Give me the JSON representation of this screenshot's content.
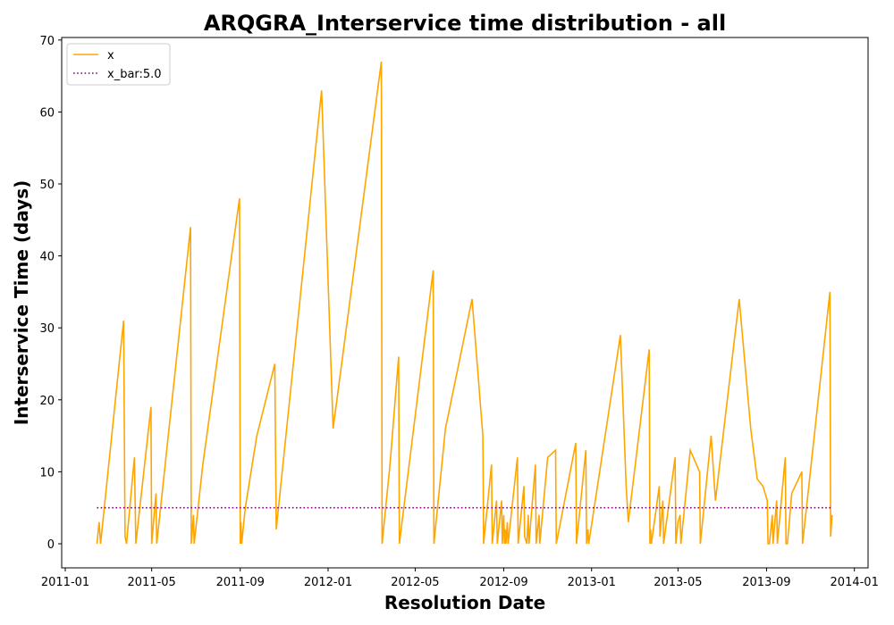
{
  "chart_data": {
    "type": "line",
    "title": "ARQGRA_Interservice time distribution - all",
    "xlabel": "Resolution Date",
    "ylabel": "Interservice Time (days)",
    "x_tick_labels": [
      "2011-01",
      "2011-05",
      "2011-09",
      "2012-01",
      "2012-05",
      "2012-09",
      "2013-01",
      "2013-05",
      "2013-09",
      "2014-01"
    ],
    "y_tick_labels": [
      "0",
      "10",
      "20",
      "30",
      "40",
      "50",
      "60",
      "70"
    ],
    "ylim": [
      -3.35,
      70.35
    ],
    "xlim": [
      "2010-12-27",
      "2014-01-20"
    ],
    "grid": false,
    "legend_position": "top-left",
    "series": [
      {
        "name": "x",
        "color": "#ffa500",
        "style": "solid",
        "points": [
          [
            "2011-02-14",
            0
          ],
          [
            "2011-02-17",
            3
          ],
          [
            "2011-02-19",
            0
          ],
          [
            "2011-03-23",
            31
          ],
          [
            "2011-03-25",
            1
          ],
          [
            "2011-03-27",
            0
          ],
          [
            "2011-04-07",
            12
          ],
          [
            "2011-04-09",
            0
          ],
          [
            "2011-04-30",
            19
          ],
          [
            "2011-05-01",
            0
          ],
          [
            "2011-05-07",
            7
          ],
          [
            "2011-05-08",
            0
          ],
          [
            "2011-06-24",
            44
          ],
          [
            "2011-06-25",
            0
          ],
          [
            "2011-06-28",
            4
          ],
          [
            "2011-06-29",
            0
          ],
          [
            "2011-07-11",
            11
          ],
          [
            "2011-08-31",
            48
          ],
          [
            "2011-09-01",
            0
          ],
          [
            "2011-09-02",
            3
          ],
          [
            "2011-09-03",
            0
          ],
          [
            "2011-09-08",
            5
          ],
          [
            "2011-09-24",
            15
          ],
          [
            "2011-10-19",
            25
          ],
          [
            "2011-10-21",
            2
          ],
          [
            "2011-12-23",
            63
          ],
          [
            "2012-01-08",
            16
          ],
          [
            "2012-03-15",
            67
          ],
          [
            "2012-03-16",
            0
          ],
          [
            "2012-03-27",
            11
          ],
          [
            "2012-04-08",
            26
          ],
          [
            "2012-04-09",
            0
          ],
          [
            "2012-05-26",
            38
          ],
          [
            "2012-05-27",
            0
          ],
          [
            "2012-06-12",
            16
          ],
          [
            "2012-07-19",
            34
          ],
          [
            "2012-08-03",
            15
          ],
          [
            "2012-08-04",
            0
          ],
          [
            "2012-08-15",
            11
          ],
          [
            "2012-08-16",
            0
          ],
          [
            "2012-08-22",
            6
          ],
          [
            "2012-08-23",
            0
          ],
          [
            "2012-08-29",
            6
          ],
          [
            "2012-08-30",
            0
          ],
          [
            "2012-09-01",
            4
          ],
          [
            "2012-09-02",
            0
          ],
          [
            "2012-09-03",
            2
          ],
          [
            "2012-09-04",
            0
          ],
          [
            "2012-09-06",
            3
          ],
          [
            "2012-09-07",
            0
          ],
          [
            "2012-09-20",
            12
          ],
          [
            "2012-09-21",
            0
          ],
          [
            "2012-09-29",
            8
          ],
          [
            "2012-09-30",
            1
          ],
          [
            "2012-10-03",
            0
          ],
          [
            "2012-10-05",
            4
          ],
          [
            "2012-10-06",
            0
          ],
          [
            "2012-10-15",
            11
          ],
          [
            "2012-10-16",
            0
          ],
          [
            "2012-10-20",
            4
          ],
          [
            "2012-10-21",
            0
          ],
          [
            "2012-11-01",
            12
          ],
          [
            "2012-11-12",
            13
          ],
          [
            "2012-11-13",
            0
          ],
          [
            "2012-12-10",
            14
          ],
          [
            "2012-12-11",
            0
          ],
          [
            "2012-12-24",
            13
          ],
          [
            "2012-12-25",
            0
          ],
          [
            "2012-12-27",
            2
          ],
          [
            "2012-12-28",
            0
          ],
          [
            "2013-02-10",
            29
          ],
          [
            "2013-02-18",
            8
          ],
          [
            "2013-02-21",
            3
          ],
          [
            "2013-03-22",
            27
          ],
          [
            "2013-03-23",
            0
          ],
          [
            "2013-03-24",
            2
          ],
          [
            "2013-03-25",
            0
          ],
          [
            "2013-04-05",
            8
          ],
          [
            "2013-04-06",
            1
          ],
          [
            "2013-04-10",
            6
          ],
          [
            "2013-04-11",
            0
          ],
          [
            "2013-04-27",
            12
          ],
          [
            "2013-04-28",
            0
          ],
          [
            "2013-05-01",
            3
          ],
          [
            "2013-05-04",
            4
          ],
          [
            "2013-05-05",
            0
          ],
          [
            "2013-05-18",
            13
          ],
          [
            "2013-05-31",
            10
          ],
          [
            "2013-06-01",
            0
          ],
          [
            "2013-06-16",
            15
          ],
          [
            "2013-06-22",
            6
          ],
          [
            "2013-07-25",
            34
          ],
          [
            "2013-08-10",
            16
          ],
          [
            "2013-08-19",
            9
          ],
          [
            "2013-08-27",
            8
          ],
          [
            "2013-09-02",
            6
          ],
          [
            "2013-09-03",
            0
          ],
          [
            "2013-09-05",
            0
          ],
          [
            "2013-09-09",
            4
          ],
          [
            "2013-09-10",
            0
          ],
          [
            "2013-09-15",
            6
          ],
          [
            "2013-09-16",
            0
          ],
          [
            "2013-09-27",
            12
          ],
          [
            "2013-09-28",
            0
          ],
          [
            "2013-09-30",
            0
          ],
          [
            "2013-10-06",
            7
          ],
          [
            "2013-10-20",
            10
          ],
          [
            "2013-10-21",
            0
          ],
          [
            "2013-11-28",
            35
          ],
          [
            "2013-11-29",
            1
          ],
          [
            "2013-12-01",
            4
          ]
        ]
      },
      {
        "name": "x_bar:5.0",
        "color": "#800080",
        "style": "dotted",
        "points": [
          [
            "2011-02-14",
            5.0
          ],
          [
            "2013-12-01",
            5.0
          ]
        ]
      }
    ]
  }
}
